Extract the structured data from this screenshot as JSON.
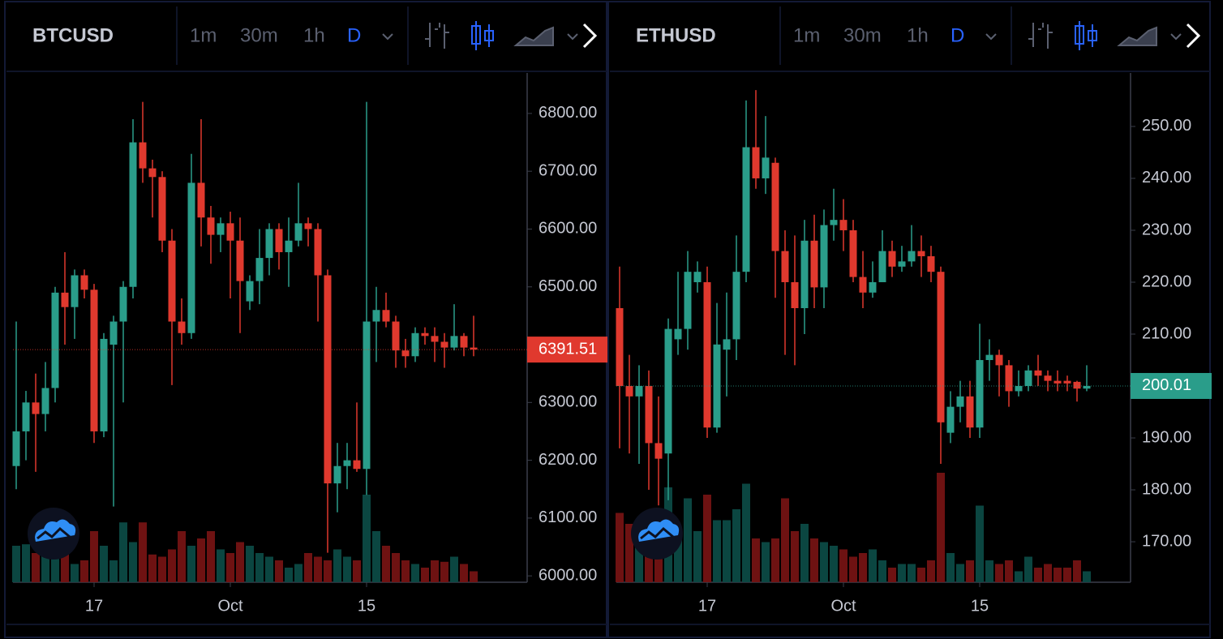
{
  "chart_data": [
    {
      "type": "candlestick",
      "title": "BTCUSD",
      "intervals": [
        "1m",
        "30m",
        "1h",
        "D"
      ],
      "categories": [
        null,
        null,
        null,
        null,
        null,
        null,
        null,
        null,
        "17",
        null,
        null,
        null,
        null,
        null,
        null,
        null,
        null,
        null,
        null,
        null,
        null,
        null,
        "Oct",
        null,
        null,
        null,
        null,
        null,
        null,
        null,
        null,
        null,
        null,
        null,
        null,
        null,
        "15",
        null,
        null,
        null,
        null,
        null,
        null,
        null,
        null,
        null,
        null,
        null
      ],
      "open": [
        6190,
        6250,
        6300,
        6280,
        6325,
        6490,
        6465,
        6520,
        6495,
        6250,
        6400,
        6440,
        6500,
        6750,
        6705,
        6690,
        6580,
        6440,
        6420,
        6680,
        6620,
        6590,
        6610,
        6580,
        6475,
        6510,
        6550,
        6600,
        6560,
        6580,
        6610,
        6600,
        6520,
        6160,
        6190,
        6200,
        6185,
        6440,
        6460,
        6440,
        6390,
        6380,
        6420,
        6415,
        6405,
        6395,
        6415,
        6395
      ],
      "high": [
        6440,
        6320,
        6350,
        6370,
        6500,
        6560,
        6530,
        6530,
        6505,
        6420,
        6450,
        6510,
        6790,
        6820,
        6720,
        6700,
        6600,
        6480,
        6730,
        6790,
        6640,
        6620,
        6630,
        6620,
        6520,
        6600,
        6610,
        6610,
        6620,
        6680,
        6620,
        6610,
        6530,
        6230,
        6230,
        6300,
        6820,
        6500,
        6490,
        6450,
        6410,
        6430,
        6430,
        6430,
        6420,
        6470,
        6420,
        6450
      ],
      "low": [
        6150,
        6200,
        6180,
        6250,
        6300,
        6400,
        6410,
        6480,
        6230,
        6240,
        6120,
        6300,
        6480,
        6680,
        6620,
        6560,
        6330,
        6400,
        6410,
        6570,
        6540,
        6560,
        6480,
        6420,
        6460,
        6470,
        6520,
        6530,
        6500,
        6570,
        6570,
        6440,
        6040,
        6110,
        6150,
        6180,
        6140,
        6370,
        6430,
        6360,
        6360,
        6370,
        6400,
        6370,
        6360,
        6390,
        6380,
        6380
      ],
      "close": [
        6250,
        6300,
        6280,
        6325,
        6490,
        6465,
        6520,
        6495,
        6250,
        6410,
        6440,
        6500,
        6750,
        6705,
        6690,
        6580,
        6440,
        6420,
        6680,
        6620,
        6590,
        6610,
        6580,
        6510,
        6510,
        6550,
        6600,
        6560,
        6580,
        6610,
        6600,
        6520,
        6160,
        6190,
        6200,
        6185,
        6440,
        6460,
        6440,
        6390,
        6380,
        6420,
        6415,
        6405,
        6395,
        6415,
        6395,
        6391.51
      ],
      "volume": [
        50,
        52,
        40,
        45,
        38,
        40,
        25,
        30,
        70,
        50,
        30,
        82,
        55,
        82,
        38,
        35,
        45,
        70,
        50,
        60,
        70,
        45,
        40,
        55,
        50,
        40,
        35,
        30,
        20,
        25,
        40,
        35,
        30,
        45,
        35,
        30,
        120,
        70,
        50,
        40,
        30,
        25,
        20,
        30,
        28,
        35,
        25,
        15
      ],
      "up_color": "#2a9d8a",
      "down_color": "#e0392e",
      "up_volume_color": "#0c4a44",
      "down_volume_color": "#741313",
      "ylim": [
        5989,
        6870
      ],
      "yticks": [
        {
          "value": 6000,
          "label": "6000.00"
        },
        {
          "value": 6100,
          "label": "6100.00"
        },
        {
          "value": 6200,
          "label": "6200.00"
        },
        {
          "value": 6300,
          "label": "6300.00"
        },
        {
          "value": 6400,
          "label": "6400.00"
        },
        {
          "value": 6500,
          "label": "6500.00"
        },
        {
          "value": 6600,
          "label": "6600.00"
        },
        {
          "value": 6700,
          "label": "6700.00"
        },
        {
          "value": 6800,
          "label": "6800.00"
        }
      ]
    },
    {
      "type": "candlestick",
      "title": "ETHUSD",
      "intervals": [
        "1m",
        "30m",
        "1h",
        "D"
      ],
      "categories": [
        null,
        null,
        null,
        null,
        null,
        null,
        null,
        null,
        null,
        "17",
        null,
        null,
        null,
        null,
        null,
        null,
        null,
        null,
        null,
        null,
        null,
        null,
        null,
        "Oct",
        null,
        null,
        null,
        null,
        null,
        null,
        null,
        null,
        null,
        null,
        null,
        null,
        null,
        "15",
        null,
        null,
        null,
        null,
        null,
        null,
        null,
        null,
        null,
        null,
        null
      ],
      "open": [
        215,
        200,
        198,
        200,
        189,
        187,
        209,
        211,
        220,
        220,
        192,
        207,
        209,
        222,
        246,
        240,
        243,
        226,
        220,
        215,
        228,
        219,
        231,
        232,
        230,
        221,
        218,
        220,
        226,
        223,
        224,
        226,
        225,
        222,
        191,
        196,
        198,
        192,
        205,
        206,
        204,
        199,
        200,
        203,
        202,
        201,
        201,
        200.8,
        199.5
      ],
      "high": [
        223,
        206,
        204,
        203,
        198,
        213,
        222,
        226,
        224,
        223,
        216,
        218,
        229,
        255,
        257,
        252,
        244,
        230,
        229,
        232,
        233,
        234,
        238,
        236,
        232,
        226,
        224,
        230,
        228,
        227,
        231,
        229,
        227,
        223,
        199,
        201,
        201,
        212,
        209,
        207,
        205,
        203,
        204,
        206,
        203,
        203,
        202,
        201,
        204
      ],
      "low": [
        188,
        187,
        185,
        180,
        177,
        178,
        206,
        207,
        218,
        190,
        191,
        198,
        205,
        220,
        238,
        237,
        217,
        206,
        204,
        210,
        215,
        215,
        228,
        226,
        220,
        215,
        217,
        220,
        221,
        222,
        223,
        221,
        220,
        185,
        189,
        193,
        190,
        190,
        201,
        198,
        196,
        198,
        199,
        200,
        199,
        199,
        199,
        197,
        199
      ],
      "close": [
        200,
        198,
        200,
        189,
        186,
        211,
        211,
        222,
        222,
        192,
        208,
        209,
        222,
        246,
        240,
        244,
        226,
        220,
        215,
        228,
        219,
        231,
        232,
        230,
        221,
        218,
        220,
        226,
        223,
        224,
        226,
        225,
        222,
        193,
        196,
        198,
        192,
        205,
        206,
        204,
        199,
        200,
        203,
        202,
        201,
        200.5,
        200.5,
        199.5,
        200.01
      ],
      "volume": [
        95,
        80,
        65,
        75,
        90,
        130,
        70,
        115,
        70,
        120,
        85,
        85,
        100,
        135,
        60,
        55,
        60,
        115,
        70,
        80,
        60,
        55,
        50,
        45,
        35,
        40,
        45,
        30,
        20,
        25,
        25,
        20,
        30,
        150,
        40,
        25,
        30,
        105,
        30,
        25,
        30,
        15,
        35,
        20,
        25,
        20,
        20,
        30,
        15
      ],
      "up_color": "#2a9d8a",
      "down_color": "#e0392e",
      "up_volume_color": "#0c4a44",
      "down_volume_color": "#741313",
      "ylim": [
        162.2,
        260.3
      ],
      "yticks": [
        {
          "value": 170,
          "label": "170.00"
        },
        {
          "value": 180,
          "label": "180.00"
        },
        {
          "value": 190,
          "label": "190.00"
        },
        {
          "value": 200,
          "label": "200.00"
        },
        {
          "value": 210,
          "label": "210.00"
        },
        {
          "value": 220,
          "label": "220.00"
        },
        {
          "value": 230,
          "label": "230.00"
        },
        {
          "value": 240,
          "label": "240.00"
        },
        {
          "value": 250,
          "label": "250.00"
        }
      ]
    }
  ]
}
